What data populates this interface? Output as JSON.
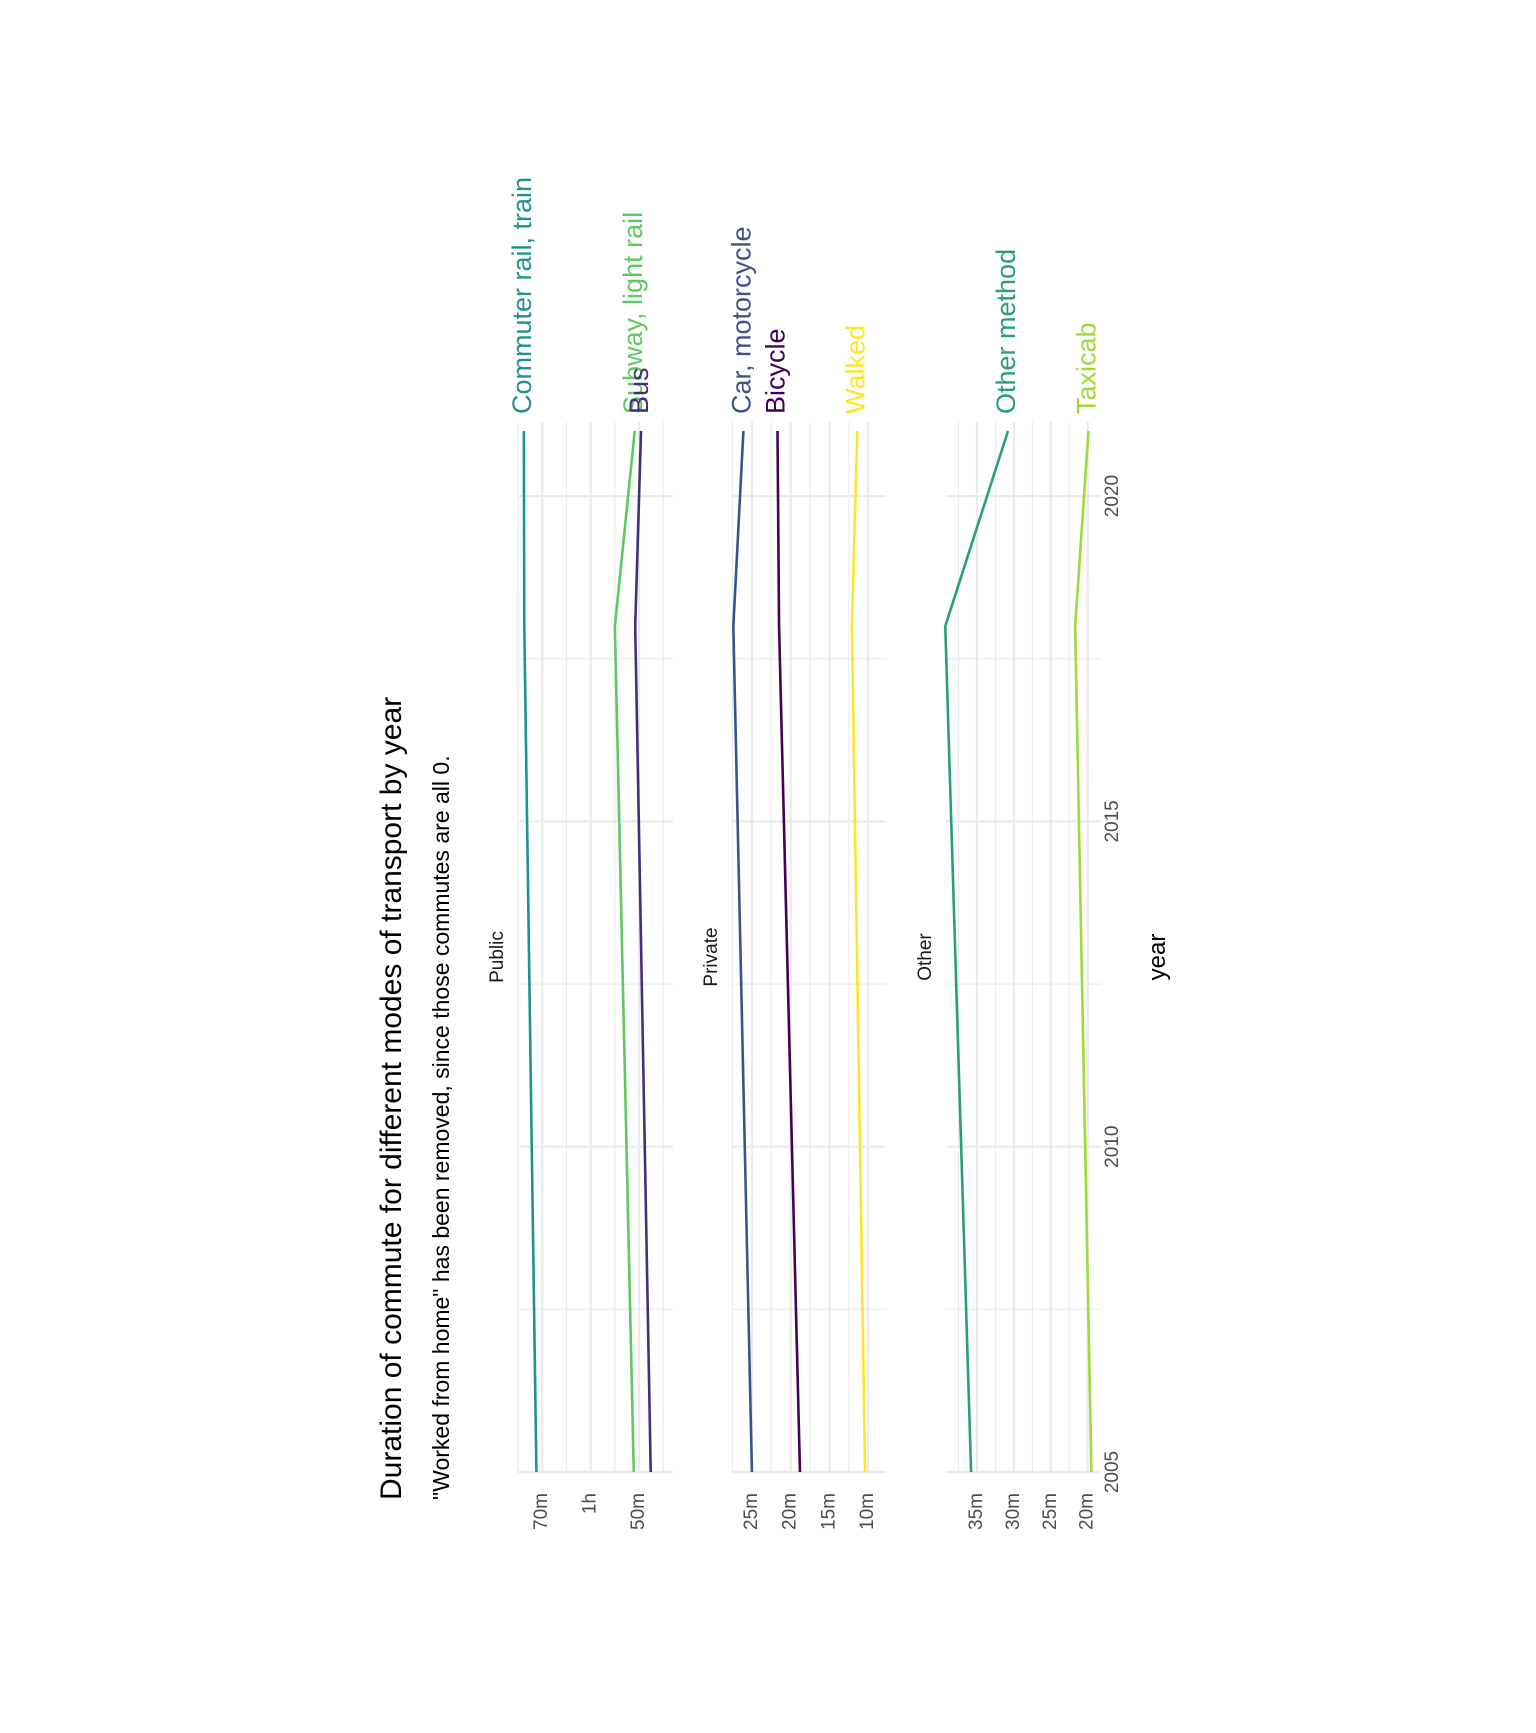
{
  "chart_data": {
    "type": "line",
    "title": "Duration of commute for different modes of transport by year",
    "subtitle": "\"Worked from home\" has been removed, since those commutes are all 0.",
    "xlabel": "year",
    "x_ticks": [
      2005,
      2010,
      2015,
      2020
    ],
    "xlim": [
      2005,
      2021
    ],
    "panels": [
      {
        "name": "Public",
        "y_ticks": [
          {
            "value": 70,
            "label": "70m"
          },
          {
            "value": 60,
            "label": "1h"
          },
          {
            "value": 50,
            "label": "50m"
          }
        ],
        "ylim": [
          43,
          75
        ],
        "series": [
          {
            "name": "Commuter rail, train",
            "color": "#21918c",
            "x": [
              2005,
              2018,
              2021
            ],
            "y": [
              71.2,
              73.7,
              73.8
            ]
          },
          {
            "name": "Subway, light rail",
            "color": "#5ec962",
            "x": [
              2005,
              2018,
              2021
            ],
            "y": [
              51.1,
              55.0,
              50.9
            ]
          },
          {
            "name": "Bus",
            "color": "#472d7b",
            "x": [
              2005,
              2018,
              2021
            ],
            "y": [
              47.6,
              50.8,
              49.6
            ]
          }
        ]
      },
      {
        "name": "Private",
        "y_ticks": [
          {
            "value": 25,
            "label": "25m"
          },
          {
            "value": 20,
            "label": "20m"
          },
          {
            "value": 15,
            "label": "15m"
          },
          {
            "value": 10,
            "label": "10m"
          }
        ],
        "ylim": [
          7.7,
          27.7
        ],
        "series": [
          {
            "name": "Car, motorcycle",
            "color": "#3b528b",
            "x": [
              2005,
              2018,
              2021
            ],
            "y": [
              25.0,
              27.4,
              26.1
            ]
          },
          {
            "name": "Bicycle",
            "color": "#440154",
            "x": [
              2005,
              2018,
              2021
            ],
            "y": [
              18.8,
              21.5,
              21.7
            ]
          },
          {
            "name": "Walked",
            "color": "#fde725",
            "x": [
              2005,
              2018,
              2021
            ],
            "y": [
              10.4,
              12.1,
              11.4
            ]
          }
        ]
      },
      {
        "name": "Other",
        "y_ticks": [
          {
            "value": 35,
            "label": "35m"
          },
          {
            "value": 30,
            "label": "30m"
          },
          {
            "value": 25,
            "label": "25m"
          },
          {
            "value": 20,
            "label": "20m"
          }
        ],
        "ylim": [
          18.2,
          39.2
        ],
        "series": [
          {
            "name": "Other method",
            "color": "#2a9d7f",
            "x": [
              2005,
              2018,
              2021
            ],
            "y": [
              35.8,
              39.3,
              30.8
            ]
          },
          {
            "name": "Taxicab",
            "color": "#a0da39",
            "x": [
              2005,
              2018,
              2021
            ],
            "y": [
              19.5,
              21.7,
              19.9
            ]
          }
        ]
      }
    ],
    "grid": true,
    "legend": "direct labels"
  }
}
